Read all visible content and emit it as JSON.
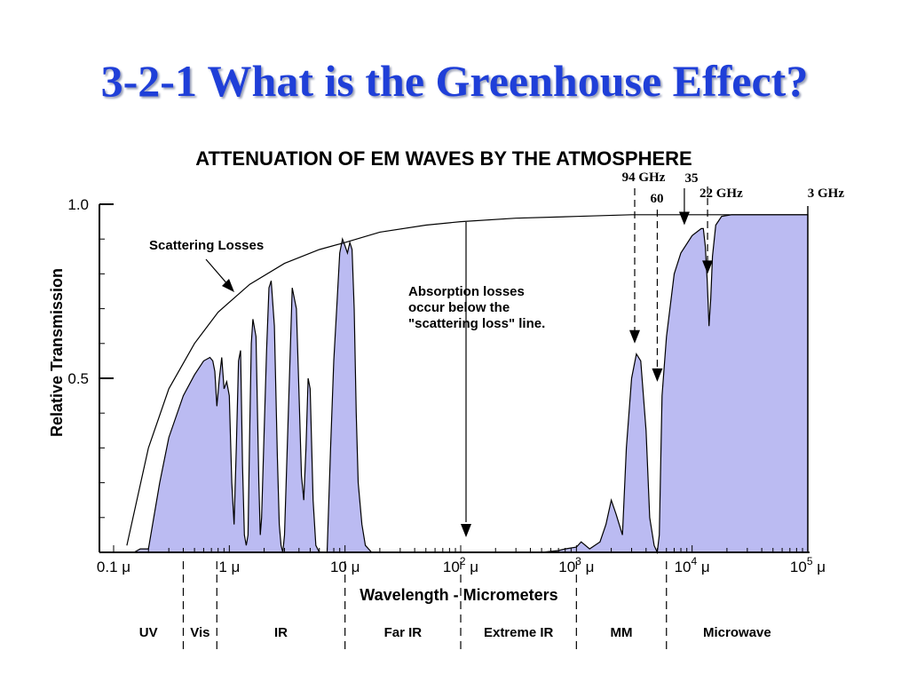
{
  "slide": {
    "title": "3-2-1 What is the Greenhouse Effect?"
  },
  "colors": {
    "fill": "#bbbbf2",
    "title": "#1f3fd8",
    "ink": "#000000"
  },
  "chart_data": {
    "type": "area",
    "title": "ATTENUATION OF EM WAVES BY THE ATMOSPHERE",
    "xlabel": "Wavelength - Micrometers",
    "ylabel": "Relative Transmission",
    "xscale": "log",
    "xlim": [
      0.1,
      100000
    ],
    "ylim": [
      0,
      1
    ],
    "grid": false,
    "x_ticks": [
      {
        "value": 0.1,
        "base": "0.1 μ",
        "exp": ""
      },
      {
        "value": 1,
        "base": "1 μ",
        "exp": ""
      },
      {
        "value": 10,
        "base": "10 μ",
        "exp": ""
      },
      {
        "value": 100,
        "base": "10",
        "exp": "2",
        "unit": " μ"
      },
      {
        "value": 1000,
        "base": "10",
        "exp": "3",
        "unit": " μ"
      },
      {
        "value": 10000,
        "base": "10",
        "exp": "4",
        "unit": " μ"
      },
      {
        "value": 100000,
        "base": "10",
        "exp": "5",
        "unit": " μ"
      }
    ],
    "y_ticks": [
      {
        "value": 1.0,
        "label": "1.0"
      },
      {
        "value": 0.5,
        "label": "0.5"
      }
    ],
    "series": [
      {
        "kind": "scattering_loss_line",
        "x": [
          0.13,
          0.2,
          0.3,
          0.5,
          0.8,
          1.5,
          3,
          6,
          10,
          20,
          50,
          100,
          300,
          1000,
          3000,
          10000,
          30000,
          100000
        ],
        "y": [
          0.02,
          0.3,
          0.47,
          0.6,
          0.69,
          0.77,
          0.83,
          0.87,
          0.89,
          0.92,
          0.94,
          0.95,
          0.96,
          0.965,
          0.97,
          0.97,
          0.97,
          0.97
        ]
      },
      {
        "kind": "transmission",
        "x": [
          0.1,
          0.15,
          0.17,
          0.2,
          0.25,
          0.3,
          0.4,
          0.5,
          0.6,
          0.68,
          0.72,
          0.75,
          0.78,
          0.82,
          0.86,
          0.9,
          0.95,
          1.0,
          1.05,
          1.1,
          1.15,
          1.2,
          1.25,
          1.3,
          1.35,
          1.4,
          1.45,
          1.5,
          1.55,
          1.6,
          1.7,
          1.8,
          1.85,
          1.9,
          2.0,
          2.1,
          2.2,
          2.3,
          2.45,
          2.6,
          2.7,
          2.8,
          2.9,
          3.0,
          3.2,
          3.5,
          3.8,
          4.0,
          4.2,
          4.4,
          4.6,
          4.8,
          5.0,
          5.3,
          5.6,
          6.0,
          6.5,
          7.0,
          7.5,
          8.0,
          8.5,
          9.0,
          9.5,
          10.0,
          10.5,
          11.0,
          11.5,
          12.0,
          12.5,
          13.0,
          14.0,
          15.0,
          17.0,
          20.0,
          50.0,
          100.0,
          300.0,
          500.0,
          700.0,
          800.0,
          1000.0,
          1100.0,
          1300.0,
          1600.0,
          1800.0,
          2000.0,
          2200.0,
          2500.0,
          2700.0,
          3000.0,
          3300.0,
          3600.0,
          4000.0,
          4300.0,
          4700.0,
          5000.0,
          5200.0,
          5500.0,
          6000.0,
          7000.0,
          8000.0,
          10000.0,
          12000.0,
          12500.0,
          13000.0,
          13500.0,
          14000.0,
          14500.0,
          15000.0,
          16000.0,
          18000.0,
          22000.0,
          30000.0,
          50000.0,
          100000.0
        ],
        "y": [
          0.0,
          0.0,
          0.01,
          0.01,
          0.2,
          0.33,
          0.45,
          0.51,
          0.55,
          0.56,
          0.55,
          0.52,
          0.42,
          0.5,
          0.56,
          0.47,
          0.49,
          0.45,
          0.2,
          0.08,
          0.3,
          0.55,
          0.58,
          0.25,
          0.05,
          0.02,
          0.05,
          0.35,
          0.6,
          0.67,
          0.62,
          0.2,
          0.05,
          0.1,
          0.35,
          0.58,
          0.76,
          0.78,
          0.65,
          0.28,
          0.08,
          0.02,
          0.0,
          0.05,
          0.35,
          0.76,
          0.7,
          0.46,
          0.22,
          0.15,
          0.3,
          0.5,
          0.47,
          0.15,
          0.02,
          0.0,
          0.0,
          0.0,
          0.3,
          0.55,
          0.71,
          0.86,
          0.9,
          0.88,
          0.86,
          0.89,
          0.87,
          0.7,
          0.4,
          0.2,
          0.08,
          0.02,
          0.0,
          0.0,
          0.0,
          0.0,
          0.0,
          0.0,
          0.005,
          0.01,
          0.015,
          0.03,
          0.01,
          0.03,
          0.08,
          0.15,
          0.11,
          0.05,
          0.3,
          0.5,
          0.57,
          0.55,
          0.35,
          0.1,
          0.02,
          0.0,
          0.05,
          0.45,
          0.62,
          0.8,
          0.86,
          0.91,
          0.93,
          0.93,
          0.88,
          0.78,
          0.65,
          0.73,
          0.85,
          0.94,
          0.965,
          0.97,
          0.97,
          0.97,
          0.97
        ]
      }
    ],
    "annotations": [
      {
        "id": "scattering",
        "text": "Scattering Losses"
      },
      {
        "id": "absorption",
        "lines": [
          "Absorption losses",
          "occur below the",
          "\"scattering loss\" line."
        ]
      },
      {
        "id": "f94",
        "text": "94 GHz",
        "x": 3190,
        "y_arrow": 0.6
      },
      {
        "id": "f60",
        "text": "60",
        "x": 5000,
        "y_arrow": 0.49
      },
      {
        "id": "f35",
        "text": "35",
        "x": 8570,
        "y_arrow": 0.94
      },
      {
        "id": "f22",
        "text": "22 GHz",
        "x": 13600,
        "y_arrow": 0.8
      },
      {
        "id": "f3",
        "text": "3 GHz",
        "x": 100000
      }
    ],
    "regions": [
      {
        "label": "UV",
        "from": 0.1,
        "to": 0.4
      },
      {
        "label": "Vis",
        "from": 0.4,
        "to": 0.78
      },
      {
        "label": "IR",
        "from": 0.78,
        "to": 10
      },
      {
        "label": "Far IR",
        "from": 10,
        "to": 100
      },
      {
        "label": "Extreme IR",
        "from": 100,
        "to": 1000
      },
      {
        "label": "MM",
        "from": 1000,
        "to": 6000
      },
      {
        "label": "Microwave",
        "from": 6000,
        "to": 100000
      }
    ]
  }
}
